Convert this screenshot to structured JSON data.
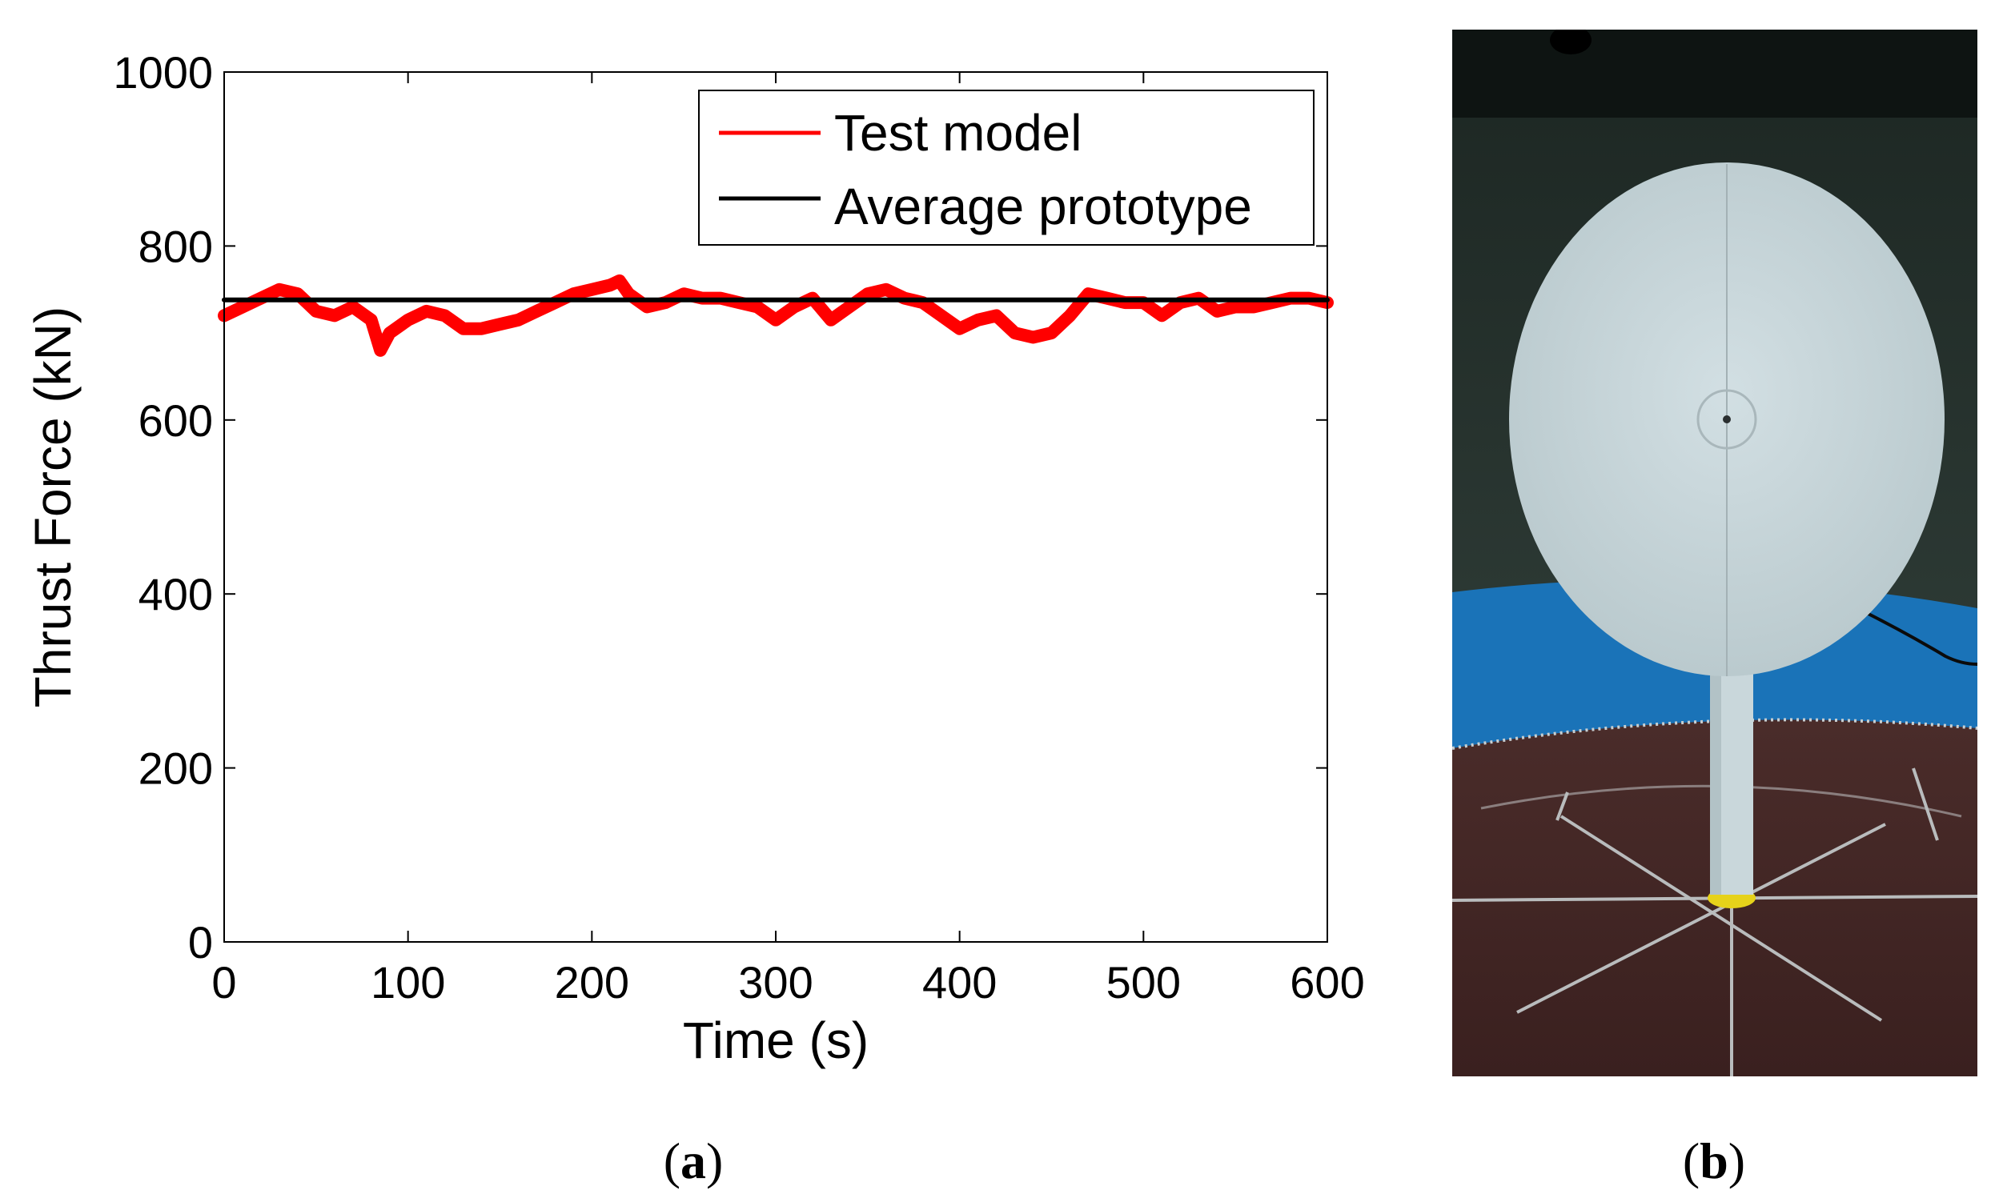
{
  "chart_data": {
    "type": "line",
    "xlabel": "Time (s)",
    "ylabel": "Thrust Force (kN)",
    "xlim": [
      0,
      600
    ],
    "ylim": [
      0,
      1000
    ],
    "x_ticks": [
      0,
      100,
      200,
      300,
      400,
      500,
      600
    ],
    "y_ticks": [
      0,
      200,
      400,
      600,
      800,
      1000
    ],
    "grid": false,
    "legend_position": "top-right",
    "series": [
      {
        "name": "Test model",
        "color": "#ff0000",
        "x": [
          0,
          10,
          20,
          30,
          40,
          50,
          60,
          70,
          80,
          85,
          90,
          100,
          110,
          120,
          130,
          140,
          150,
          160,
          170,
          180,
          190,
          200,
          210,
          215,
          220,
          230,
          240,
          250,
          260,
          270,
          280,
          290,
          300,
          310,
          320,
          330,
          340,
          350,
          360,
          370,
          380,
          390,
          400,
          410,
          420,
          430,
          440,
          450,
          460,
          470,
          480,
          490,
          500,
          510,
          520,
          530,
          540,
          550,
          560,
          570,
          580,
          590,
          600
        ],
        "values": [
          720,
          730,
          740,
          750,
          745,
          725,
          720,
          730,
          715,
          680,
          700,
          715,
          725,
          720,
          705,
          705,
          710,
          715,
          725,
          735,
          745,
          750,
          755,
          760,
          745,
          730,
          735,
          745,
          740,
          740,
          735,
          730,
          715,
          730,
          740,
          715,
          730,
          745,
          750,
          740,
          735,
          720,
          705,
          715,
          720,
          700,
          695,
          700,
          720,
          745,
          740,
          735,
          735,
          720,
          735,
          740,
          725,
          730,
          730,
          735,
          740,
          740,
          735
        ]
      },
      {
        "name": "Average prototype",
        "color": "#000000",
        "x": [
          0,
          600
        ],
        "values": [
          738,
          738
        ]
      }
    ]
  },
  "captions": {
    "a": {
      "open": "(",
      "letter": "a",
      "close": ")"
    },
    "b": {
      "open": "(",
      "letter": "b",
      "close": ")"
    }
  }
}
